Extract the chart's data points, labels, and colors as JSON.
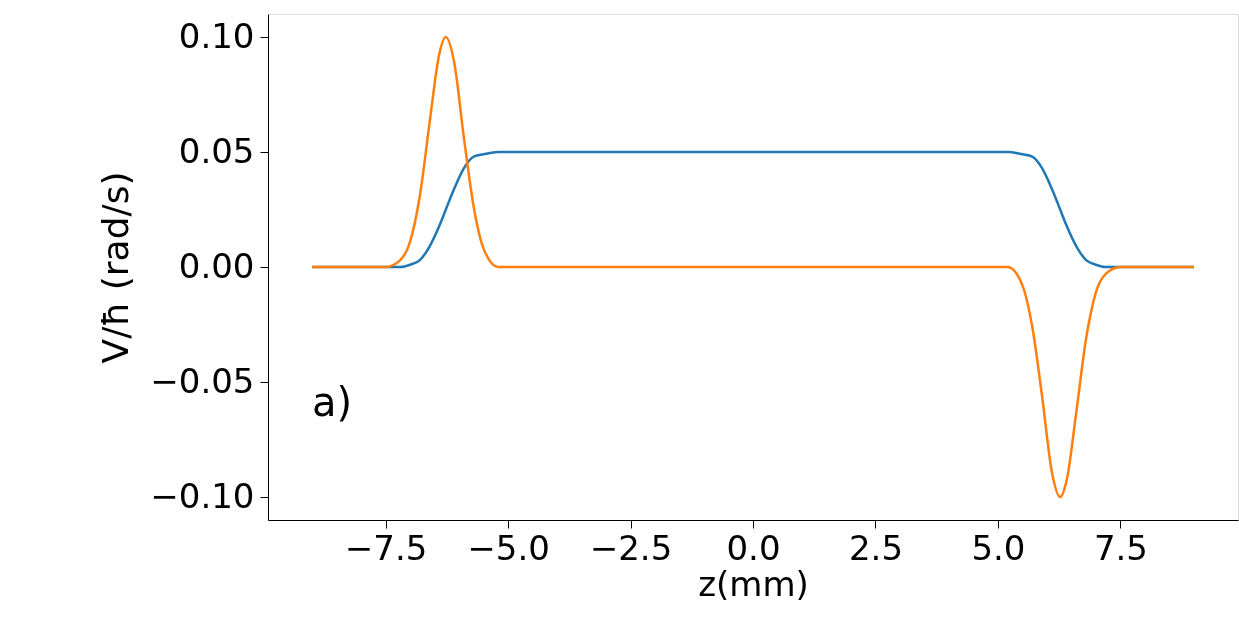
{
  "chart_data": {
    "type": "line",
    "xlabel": "z(mm)",
    "ylabel": "V/ħ (rad/s)",
    "annotations": [
      "a)"
    ],
    "x": [
      -9,
      -7.5,
      -7.2,
      -7.0,
      -6.8,
      -6.6,
      -6.4,
      -6.27,
      -6.1,
      -5.9,
      -5.7,
      -5.5,
      -5.2,
      -5.0,
      5.0,
      5.2,
      5.5,
      5.7,
      5.9,
      6.1,
      6.27,
      6.4,
      6.6,
      6.8,
      7.0,
      7.2,
      7.5,
      9
    ],
    "series": [
      {
        "color": "#1f77b4",
        "values": [
          0,
          0,
          0.0,
          0.001,
          0.003,
          0.009,
          0.018,
          0.025,
          0.034,
          0.043,
          0.048,
          0.049,
          0.05,
          0.05,
          0.05,
          0.05,
          0.049,
          0.048,
          0.043,
          0.034,
          0.025,
          0.018,
          0.009,
          0.003,
          0.001,
          0,
          0,
          0
        ]
      },
      {
        "color": "#ff7f0e",
        "values": [
          0,
          0,
          0.003,
          0.011,
          0.031,
          0.063,
          0.093,
          0.1,
          0.089,
          0.056,
          0.026,
          0.008,
          0,
          0,
          0,
          0,
          -0.008,
          -0.026,
          -0.056,
          -0.089,
          -0.1,
          -0.093,
          -0.063,
          -0.031,
          -0.011,
          -0.003,
          0,
          0
        ]
      }
    ],
    "xlim": [
      -9.9,
      9.9
    ],
    "xticks": [
      {
        "value": -7.5,
        "label": "−7.5"
      },
      {
        "value": -5,
        "label": "−5.0"
      },
      {
        "value": -2.5,
        "label": "−2.5"
      },
      {
        "value": 0,
        "label": "0.0"
      },
      {
        "value": 2.5,
        "label": "2.5"
      },
      {
        "value": 5,
        "label": "5.0"
      },
      {
        "value": 7.5,
        "label": "7.5"
      }
    ],
    "ylim": [
      -0.11,
      0.11
    ],
    "yticks": [
      {
        "value": -0.1,
        "label": "−0.10"
      },
      {
        "value": -0.05,
        "label": "−0.05"
      },
      {
        "value": 0,
        "label": "0.00"
      },
      {
        "value": 0.05,
        "label": "0.05"
      },
      {
        "value": 0.1,
        "label": "0.10"
      }
    ],
    "grid": false,
    "marker": "none",
    "line_style": "solid"
  }
}
